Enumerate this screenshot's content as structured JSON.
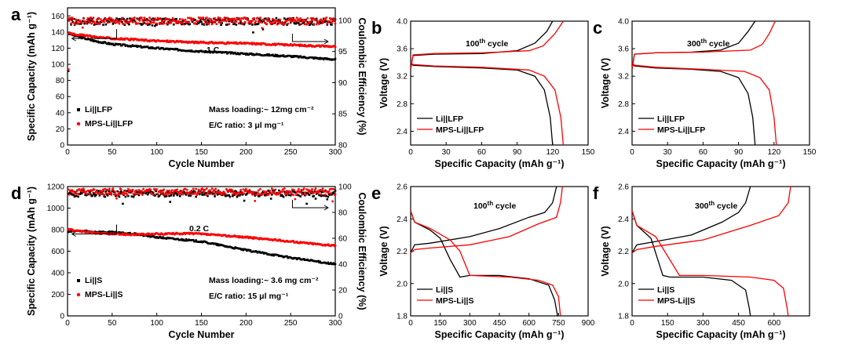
{
  "colors": {
    "series1": "#000000",
    "series2": "#ff0000"
  },
  "chart_data": [
    {
      "letter": "a",
      "type": "scatter",
      "xlabel": "Cycle Number",
      "ylabel": "Specific Capacity (mAh g⁻¹)",
      "y2label": "Coulombic Efficiency (%)",
      "xlim": [
        0,
        300
      ],
      "ylim": [
        0,
        170
      ],
      "y2lim": [
        80,
        102
      ],
      "xticks": [
        0,
        50,
        100,
        150,
        200,
        250,
        300
      ],
      "yticks": [
        0,
        20,
        40,
        60,
        80,
        100,
        120,
        140,
        160
      ],
      "y2ticks": [
        80,
        85,
        90,
        95,
        100
      ],
      "annotations": {
        "rate": "1 C",
        "mass": "Mass loading:~ 12mg cm⁻²",
        "ec": "E/C ratio: 3 μl mg⁻¹"
      },
      "series": [
        {
          "name": "Li||LFP",
          "capacity": [
            [
              1,
              92
            ],
            [
              2,
              138
            ],
            [
              10,
              135
            ],
            [
              30,
              129
            ],
            [
              50,
              125
            ],
            [
              100,
              120
            ],
            [
              150,
              116
            ],
            [
              200,
              113
            ],
            [
              250,
              110
            ],
            [
              300,
              106
            ]
          ],
          "ce_mean": 99.8
        },
        {
          "name": "MPS-Li||LFP",
          "capacity": [
            [
              1,
              94
            ],
            [
              2,
              139
            ],
            [
              10,
              137
            ],
            [
              30,
              134
            ],
            [
              50,
              132
            ],
            [
              100,
              129
            ],
            [
              150,
              127
            ],
            [
              200,
              126
            ],
            [
              250,
              124
            ],
            [
              300,
              122
            ]
          ],
          "ce_mean": 99.9
        }
      ]
    },
    {
      "letter": "b",
      "type": "line",
      "xlabel": "Specific Capacity (mAh g⁻¹)",
      "ylabel": "Voltage (V)",
      "xlim": [
        0,
        150
      ],
      "ylim": [
        2.2,
        4.0
      ],
      "xticks": [
        0,
        30,
        60,
        90,
        120,
        150
      ],
      "yticks": [
        2.4,
        2.8,
        3.2,
        3.6,
        4.0
      ],
      "annotation": {
        "prefix": "100",
        "sup": "th",
        "suffix": " cycle"
      },
      "series": [
        {
          "name": "Li||LFP",
          "charge": [
            [
              0,
              3.3
            ],
            [
              2,
              3.5
            ],
            [
              20,
              3.52
            ],
            [
              60,
              3.53
            ],
            [
              90,
              3.57
            ],
            [
              105,
              3.68
            ],
            [
              115,
              3.85
            ],
            [
              120,
              4.0
            ]
          ],
          "discharge": [
            [
              0,
              3.4
            ],
            [
              2,
              3.36
            ],
            [
              20,
              3.34
            ],
            [
              60,
              3.32
            ],
            [
              90,
              3.29
            ],
            [
              105,
              3.2
            ],
            [
              113,
              3.0
            ],
            [
              118,
              2.6
            ],
            [
              120,
              2.2
            ]
          ]
        },
        {
          "name": "MPS-Li||LFP",
          "charge": [
            [
              0,
              3.3
            ],
            [
              2,
              3.51
            ],
            [
              20,
              3.53
            ],
            [
              60,
              3.54
            ],
            [
              100,
              3.57
            ],
            [
              112,
              3.64
            ],
            [
              122,
              3.82
            ],
            [
              129,
              4.0
            ]
          ],
          "discharge": [
            [
              0,
              3.4
            ],
            [
              2,
              3.37
            ],
            [
              20,
              3.35
            ],
            [
              60,
              3.33
            ],
            [
              100,
              3.29
            ],
            [
              113,
              3.2
            ],
            [
              122,
              3.0
            ],
            [
              127,
              2.6
            ],
            [
              129,
              2.2
            ]
          ]
        }
      ]
    },
    {
      "letter": "c",
      "type": "line",
      "xlabel": "Specific Capacity (mAh g⁻¹)",
      "ylabel": "Voltage (V)",
      "xlim": [
        0,
        150
      ],
      "ylim": [
        2.2,
        4.0
      ],
      "xticks": [
        0,
        30,
        60,
        90,
        120,
        150
      ],
      "yticks": [
        2.4,
        2.8,
        3.2,
        3.6,
        4.0
      ],
      "annotation": {
        "prefix": "300",
        "sup": "th",
        "suffix": " cycle"
      },
      "series": [
        {
          "name": "Li||LFP",
          "charge": [
            [
              0,
              3.3
            ],
            [
              2,
              3.52
            ],
            [
              20,
              3.54
            ],
            [
              50,
              3.55
            ],
            [
              75,
              3.58
            ],
            [
              90,
              3.68
            ],
            [
              98,
              3.85
            ],
            [
              104,
              4.0
            ]
          ],
          "discharge": [
            [
              0,
              3.4
            ],
            [
              2,
              3.35
            ],
            [
              20,
              3.32
            ],
            [
              50,
              3.3
            ],
            [
              75,
              3.27
            ],
            [
              90,
              3.18
            ],
            [
              98,
              2.95
            ],
            [
              102,
              2.6
            ],
            [
              104,
              2.2
            ]
          ]
        },
        {
          "name": "MPS-Li||LFP",
          "charge": [
            [
              0,
              3.3
            ],
            [
              2,
              3.52
            ],
            [
              20,
              3.54
            ],
            [
              60,
              3.55
            ],
            [
              100,
              3.58
            ],
            [
              110,
              3.66
            ],
            [
              116,
              3.82
            ],
            [
              121,
              4.0
            ]
          ],
          "discharge": [
            [
              0,
              3.4
            ],
            [
              2,
              3.36
            ],
            [
              20,
              3.33
            ],
            [
              60,
              3.3
            ],
            [
              95,
              3.27
            ],
            [
              108,
              3.18
            ],
            [
              116,
              3.0
            ],
            [
              120,
              2.6
            ],
            [
              122,
              2.2
            ]
          ]
        }
      ]
    },
    {
      "letter": "d",
      "type": "scatter",
      "xlabel": "Cycle Number",
      "ylabel": "Specific Capacity (mAh g⁻¹)",
      "y2label": "Coulombic Efficiency (%)",
      "xlim": [
        0,
        300
      ],
      "ylim": [
        0,
        1200
      ],
      "y2lim": [
        0,
        100
      ],
      "xticks": [
        0,
        50,
        100,
        150,
        200,
        250,
        300
      ],
      "yticks": [
        0,
        200,
        400,
        600,
        800,
        1000,
        1200
      ],
      "y2ticks": [
        0,
        20,
        40,
        60,
        80,
        100
      ],
      "annotations": {
        "rate": "0.2 C",
        "mass": "Mass loading:~ 3.6 mg cm⁻²",
        "ec": "E/C ratio: 15 μl mg⁻¹"
      },
      "series": [
        {
          "name": "Li||S",
          "capacity": [
            [
              1,
              780
            ],
            [
              10,
              790
            ],
            [
              30,
              780
            ],
            [
              50,
              775
            ],
            [
              75,
              760
            ],
            [
              100,
              730
            ],
            [
              150,
              690
            ],
            [
              200,
              610
            ],
            [
              250,
              540
            ],
            [
              300,
              480
            ]
          ],
          "ce_mean": 94.5
        },
        {
          "name": "MPS-Li||S",
          "capacity": [
            [
              1,
              800
            ],
            [
              10,
              790
            ],
            [
              30,
              770
            ],
            [
              50,
              760
            ],
            [
              75,
              755
            ],
            [
              100,
              760
            ],
            [
              140,
              765
            ],
            [
              200,
              730
            ],
            [
              250,
              690
            ],
            [
              300,
              650
            ]
          ],
          "ce_mean": 96.0
        }
      ]
    },
    {
      "letter": "e",
      "type": "line",
      "xlabel": "Specific Capacity (mAh g⁻¹)",
      "ylabel": "Voltage (V)",
      "xlim": [
        0,
        900
      ],
      "ylim": [
        1.8,
        2.6
      ],
      "xticks": [
        0,
        150,
        300,
        450,
        600,
        750,
        900
      ],
      "yticks": [
        1.8,
        2.0,
        2.2,
        2.4,
        2.6
      ],
      "annotation": {
        "prefix": "100",
        "sup": "th",
        "suffix": " cycle"
      },
      "series": [
        {
          "name": "Li||S",
          "charge": [
            [
              0,
              2.19
            ],
            [
              20,
              2.24
            ],
            [
              100,
              2.25
            ],
            [
              300,
              2.29
            ],
            [
              450,
              2.34
            ],
            [
              600,
              2.41
            ],
            [
              680,
              2.44
            ],
            [
              720,
              2.5
            ],
            [
              740,
              2.6
            ]
          ],
          "discharge": [
            [
              0,
              2.45
            ],
            [
              20,
              2.38
            ],
            [
              100,
              2.33
            ],
            [
              150,
              2.28
            ],
            [
              200,
              2.15
            ],
            [
              250,
              2.04
            ],
            [
              300,
              2.05
            ],
            [
              450,
              2.05
            ],
            [
              600,
              2.03
            ],
            [
              700,
              1.99
            ],
            [
              730,
              1.9
            ],
            [
              745,
              1.8
            ]
          ]
        },
        {
          "name": "MPS-Li||S",
          "charge": [
            [
              0,
              2.19
            ],
            [
              20,
              2.21
            ],
            [
              100,
              2.22
            ],
            [
              300,
              2.24
            ],
            [
              500,
              2.29
            ],
            [
              650,
              2.37
            ],
            [
              740,
              2.41
            ],
            [
              760,
              2.5
            ],
            [
              770,
              2.6
            ]
          ],
          "discharge": [
            [
              0,
              2.45
            ],
            [
              20,
              2.38
            ],
            [
              100,
              2.34
            ],
            [
              200,
              2.27
            ],
            [
              250,
              2.2
            ],
            [
              300,
              2.05
            ],
            [
              500,
              2.04
            ],
            [
              650,
              2.02
            ],
            [
              720,
              1.99
            ],
            [
              750,
              1.92
            ],
            [
              760,
              1.8
            ]
          ]
        }
      ]
    },
    {
      "letter": "f",
      "type": "line",
      "xlabel": "Specific Capacity (mAh g⁻¹)",
      "ylabel": "Voltage (V)",
      "xlim": [
        0,
        750
      ],
      "ylim": [
        1.8,
        2.6
      ],
      "xticks": [
        0,
        150,
        300,
        450,
        600
      ],
      "yticks": [
        1.8,
        2.0,
        2.2,
        2.4,
        2.6
      ],
      "annotation": {
        "prefix": "300",
        "sup": "th",
        "suffix": " cycle"
      },
      "series": [
        {
          "name": "Li||S",
          "charge": [
            [
              0,
              2.19
            ],
            [
              20,
              2.24
            ],
            [
              100,
              2.26
            ],
            [
              250,
              2.3
            ],
            [
              380,
              2.38
            ],
            [
              450,
              2.44
            ],
            [
              480,
              2.5
            ],
            [
              500,
              2.6
            ]
          ],
          "discharge": [
            [
              0,
              2.45
            ],
            [
              20,
              2.36
            ],
            [
              80,
              2.28
            ],
            [
              130,
              2.05
            ],
            [
              160,
              2.04
            ],
            [
              300,
              2.04
            ],
            [
              420,
              2.02
            ],
            [
              480,
              1.96
            ],
            [
              495,
              1.85
            ],
            [
              500,
              1.8
            ]
          ]
        },
        {
          "name": "MPS-Li||S",
          "charge": [
            [
              0,
              2.19
            ],
            [
              20,
              2.21
            ],
            [
              100,
              2.23
            ],
            [
              300,
              2.27
            ],
            [
              500,
              2.36
            ],
            [
              620,
              2.42
            ],
            [
              660,
              2.5
            ],
            [
              670,
              2.6
            ]
          ],
          "discharge": [
            [
              0,
              2.45
            ],
            [
              20,
              2.36
            ],
            [
              100,
              2.29
            ],
            [
              200,
              2.05
            ],
            [
              300,
              2.05
            ],
            [
              500,
              2.04
            ],
            [
              600,
              2.02
            ],
            [
              640,
              1.97
            ],
            [
              655,
              1.85
            ],
            [
              660,
              1.8
            ]
          ]
        }
      ]
    }
  ]
}
